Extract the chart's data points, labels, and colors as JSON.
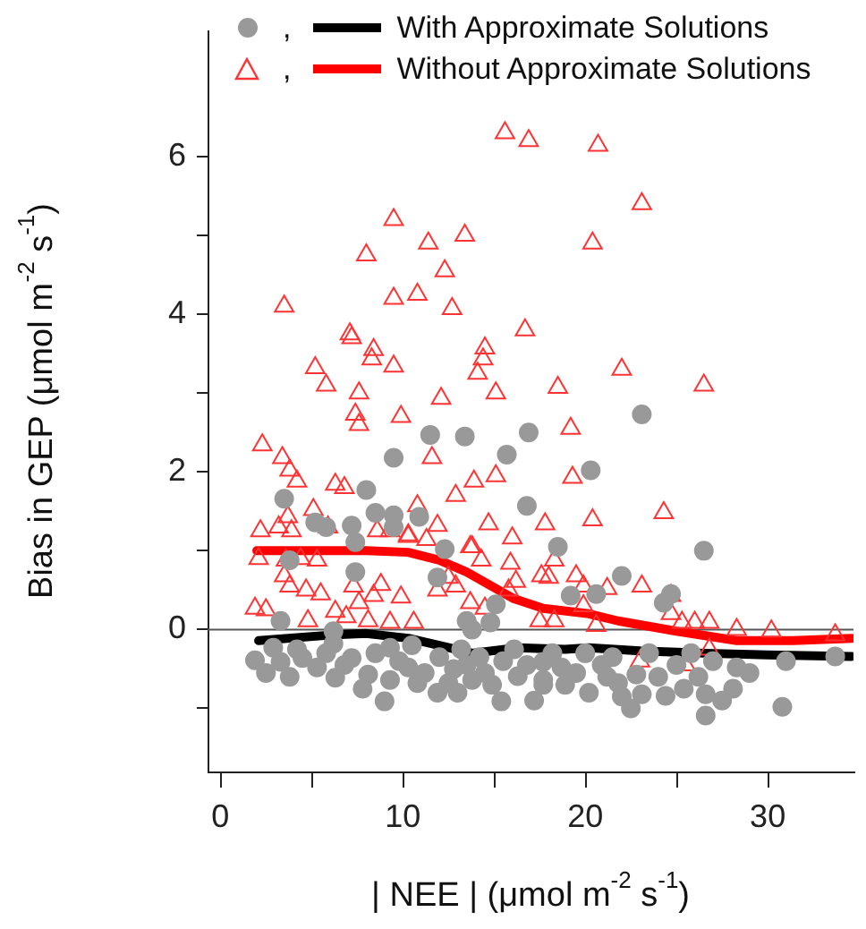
{
  "chart_data": {
    "type": "scatter",
    "xlabel": "| NEE | (μmol m$^{-2}$ s$^{-1}$)",
    "ylabel": "Bias in GEP (μmol m$^{-2}$ s$^{-1}$)",
    "xlim": [
      -0.7,
      34.7
    ],
    "ylim": [
      -1.8,
      7.6
    ],
    "xticks": [
      0,
      {
        "value": 5,
        "label": null
      },
      10,
      {
        "value": 15,
        "label": null
      },
      20,
      {
        "value": 25,
        "label": null
      },
      30
    ],
    "yticks": [
      {
        "value": -1,
        "label": null
      },
      0,
      {
        "value": 1,
        "label": null
      },
      2,
      {
        "value": 3,
        "label": null
      },
      4,
      {
        "value": 5,
        "label": null
      },
      6
    ],
    "legend": "top right",
    "ref_lines": [
      {
        "axis": "y",
        "value": 0,
        "color": "#555555"
      }
    ],
    "series": [
      {
        "name": ",",
        "marker": "circle",
        "color": "#999999",
        "x": [
          11.5,
          13.4,
          16.9,
          9.5,
          15.7,
          8.0,
          3.5,
          8.5,
          9.5,
          10.9,
          5.2,
          5.8,
          7.2,
          9.5,
          16.8,
          7.4,
          12.3,
          18.5,
          23.1,
          20.3,
          26.5,
          22.0,
          19.2,
          20.6,
          24.3,
          24.7,
          30.8,
          26.6,
          22.5,
          26.6,
          28.1,
          28.3,
          33.7,
          23.1,
          24.4,
          25.4,
          21.8,
          20.2,
          18.9,
          17.7,
          20.9,
          18.7,
          22.8,
          1.9,
          3.3,
          4.5,
          5.3,
          6.3,
          7.2,
          8.1,
          9.0,
          9.3,
          10.3,
          10.8,
          11.9,
          12.5,
          13.8,
          13.5,
          14.9,
          15.4,
          16.3,
          17.7,
          17.7,
          2.9,
          6.2,
          9.3,
          13.2,
          16.1,
          11.9,
          15.1,
          7.4,
          3.8,
          3.3,
          6.2,
          13.5,
          14.8,
          13.8,
          2.5,
          3.8,
          4.2,
          5.8,
          6.8,
          7.8,
          8.5,
          9.8,
          10.5,
          11.2,
          12.0,
          12.8,
          13.0,
          14.2,
          14.5,
          15.5,
          16.8,
          17.2,
          18.2,
          19.5,
          20.0,
          21.2,
          21.5,
          22.0,
          23.5,
          24.0,
          25.0,
          25.8,
          26.2,
          27.0,
          27.5,
          29.0,
          31.0
        ],
        "values": [
          2.47,
          2.45,
          2.5,
          2.18,
          2.22,
          1.77,
          1.66,
          1.48,
          1.45,
          1.43,
          1.36,
          1.3,
          1.32,
          1.3,
          1.57,
          1.11,
          1.02,
          1.05,
          2.73,
          2.02,
          1.0,
          0.68,
          0.43,
          0.45,
          0.34,
          0.45,
          -0.98,
          -1.09,
          -1.0,
          -0.82,
          -0.75,
          -0.48,
          -0.34,
          -0.82,
          -0.84,
          -0.75,
          -0.68,
          -0.8,
          -0.7,
          -0.64,
          -0.45,
          -0.48,
          -0.57,
          -0.39,
          -0.41,
          -0.36,
          -0.48,
          -0.61,
          -0.36,
          -0.57,
          -0.91,
          -0.64,
          -0.48,
          -0.68,
          -0.8,
          -0.68,
          -0.64,
          -0.45,
          -0.7,
          -0.91,
          -0.59,
          -0.7,
          -0.41,
          -0.23,
          -0.18,
          -0.23,
          -0.25,
          -0.25,
          0.66,
          0.32,
          0.73,
          0.88,
          0.11,
          -0.02,
          0.11,
          0.09,
          0.0,
          -0.55,
          -0.6,
          -0.25,
          -0.3,
          -0.45,
          -0.75,
          -0.3,
          -0.4,
          -0.2,
          -0.55,
          -0.35,
          -0.5,
          -0.8,
          -0.35,
          -0.55,
          -0.4,
          -0.45,
          -0.9,
          -0.3,
          -0.55,
          -0.3,
          -0.6,
          -0.35,
          -0.85,
          -0.3,
          -0.6,
          -0.45,
          -0.3,
          -0.6,
          -0.4,
          -0.9,
          -0.55,
          -0.4
        ]
      },
      {
        "name": ",",
        "marker": "triangle",
        "color": "#ff3333",
        "x": [
          15.6,
          16.9,
          9.5,
          11.4,
          13.4,
          8.0,
          12.3,
          3.5,
          9.5,
          10.8,
          12.7,
          16.7,
          7.1,
          7.2,
          8.4,
          8.3,
          9.5,
          14.5,
          14.4,
          14.1,
          5.2,
          5.8,
          7.6,
          18.5,
          12.1,
          15.1,
          7.4,
          7.6,
          9.9,
          2.3,
          3.4,
          3.8,
          4.2,
          11.6,
          6.3,
          6.8,
          13.9,
          15.1,
          12.9,
          10.8,
          5.1,
          3.7,
          2.2,
          3.2,
          3.9,
          8.6,
          9.3,
          10.3,
          11.9,
          14.7,
          16.0,
          17.8,
          13.8,
          20.7,
          23.1,
          20.4,
          22.0,
          26.5,
          19.2,
          19.3,
          20.4,
          24.3,
          5.9,
          2.1,
          3.6,
          4.4,
          5.3,
          10.3,
          11.3,
          13.7,
          14.3,
          15.9,
          3.5,
          3.8,
          4.7,
          5.5,
          7.3,
          8.8,
          8.4,
          7.6,
          9.9,
          12.5,
          12.9,
          11.9,
          13.7,
          14.5,
          15.8,
          16.2,
          17.6,
          1.9,
          2.5,
          6.3,
          6.9,
          4.8,
          8.1,
          10.6,
          9.3,
          18.3,
          17.5,
          18.0,
          19.5,
          19.9,
          21.2,
          23.1,
          24.7,
          24.7,
          25.3,
          19.9,
          18.3,
          26.0,
          26.8,
          26.8,
          25.5,
          23.0,
          28.3,
          30.2,
          33.7,
          20.6
        ],
        "values": [
          6.3,
          6.2,
          5.2,
          4.9,
          5.0,
          4.75,
          4.55,
          4.1,
          4.2,
          4.25,
          4.07,
          3.8,
          3.75,
          3.7,
          3.55,
          3.43,
          3.34,
          3.57,
          3.43,
          3.25,
          3.32,
          3.1,
          3.0,
          3.07,
          2.93,
          3.0,
          2.73,
          2.6,
          2.7,
          2.34,
          2.18,
          2.02,
          1.88,
          2.18,
          1.84,
          1.8,
          1.88,
          1.95,
          1.7,
          1.57,
          1.52,
          1.43,
          1.25,
          1.3,
          1.25,
          1.25,
          1.25,
          1.2,
          1.32,
          1.34,
          1.16,
          1.34,
          1.05,
          6.14,
          5.4,
          4.9,
          3.3,
          3.1,
          2.55,
          1.93,
          1.39,
          1.48,
          1.3,
          0.9,
          0.88,
          0.9,
          0.88,
          1.18,
          1.14,
          1.05,
          0.88,
          0.84,
          0.68,
          0.55,
          0.5,
          0.45,
          0.55,
          0.57,
          0.43,
          0.34,
          0.41,
          0.66,
          0.55,
          0.5,
          0.34,
          0.27,
          0.5,
          0.61,
          0.68,
          0.27,
          0.25,
          0.23,
          0.16,
          0.11,
          0.11,
          0.09,
          0.09,
          0.88,
          0.11,
          0.66,
          0.68,
          0.55,
          0.52,
          0.55,
          0.43,
          0.2,
          0.09,
          0.3,
          0.11,
          0.09,
          0.09,
          -0.25,
          -0.45,
          -0.4,
          0.0,
          -0.02,
          -0.07,
          0.05
        ]
      },
      {
        "type": "line",
        "name": "With Approximate Solutions",
        "color": "#000000",
        "marker": "none",
        "line_style": "solid",
        "x": [
          2.1,
          6,
          8,
          10.3,
          12,
          13.8,
          16.3,
          18.9,
          20.2,
          23,
          26.6,
          30,
          34.6
        ],
        "values": [
          -0.14,
          -0.07,
          -0.05,
          -0.11,
          -0.2,
          -0.3,
          -0.23,
          -0.25,
          -0.23,
          -0.27,
          -0.3,
          -0.32,
          -0.34
        ]
      },
      {
        "type": "line",
        "name": "Without Approximate Solutions",
        "color": "#ff0000",
        "marker": "none",
        "line_style": "solid",
        "x": [
          2,
          5,
          8,
          10.3,
          12,
          13.5,
          16.1,
          17.7,
          20.2,
          21.8,
          25,
          28.3,
          31.4,
          34.6
        ],
        "values": [
          1.0,
          1.0,
          1.0,
          0.98,
          0.88,
          0.73,
          0.39,
          0.27,
          0.2,
          0.11,
          -0.02,
          -0.14,
          -0.14,
          -0.11
        ]
      }
    ]
  }
}
